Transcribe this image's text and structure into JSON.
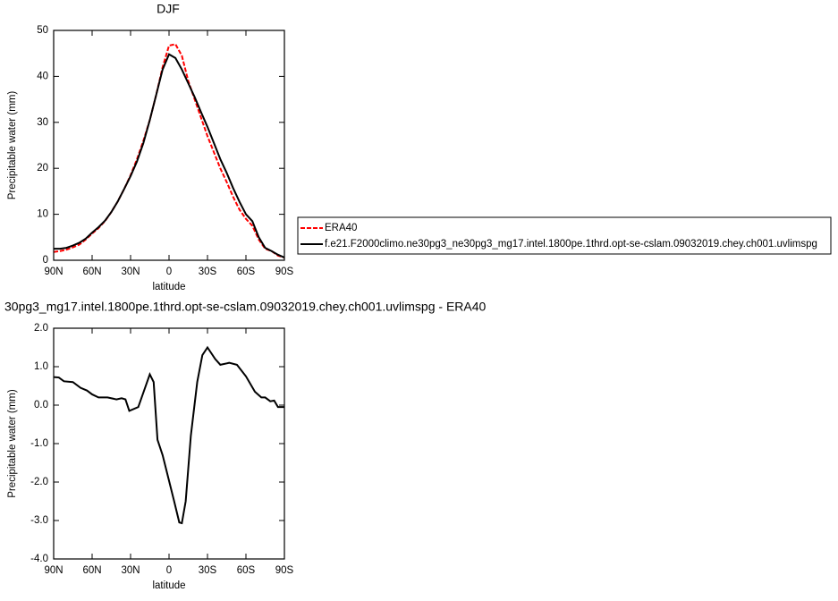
{
  "chart_data": [
    {
      "type": "line",
      "title": "DJF",
      "xlabel": "latitude",
      "ylabel": "Precipitable water (mm)",
      "x": [
        90,
        85,
        80,
        75,
        70,
        65,
        60,
        55,
        50,
        45,
        40,
        35,
        30,
        25,
        20,
        15,
        10,
        5,
        0,
        -5,
        -10,
        -15,
        -20,
        -25,
        -30,
        -35,
        -40,
        -45,
        -50,
        -55,
        -60,
        -65,
        -70,
        -75,
        -80,
        -85,
        -90
      ],
      "series": [
        {
          "name": "ERA40",
          "color": "#ff0000",
          "line_style": "dashed",
          "values": [
            1.8,
            2.0,
            2.3,
            2.8,
            3.4,
            4.5,
            5.8,
            7.0,
            8.5,
            10.5,
            12.8,
            15.5,
            18.5,
            22,
            26,
            30.5,
            36,
            42,
            46.7,
            47,
            44.5,
            39,
            35,
            31,
            27,
            23.5,
            20,
            17,
            13.8,
            11,
            9,
            7.5,
            4.5,
            2.5,
            2,
            1,
            0.6
          ]
        },
        {
          "name": "f.e21.F2000climo.ne30pg3_ne30pg3_mg17.intel.1800pe.1thrd.opt-se-cslam.09032019.chey.ch001.uvlimspg",
          "color": "#000000",
          "line_style": "solid",
          "values": [
            2.5,
            2.5,
            2.7,
            3.2,
            3.8,
            4.7,
            6,
            7.2,
            8.6,
            10.5,
            12.8,
            15.5,
            18.3,
            21.5,
            25.5,
            30.5,
            36,
            41.5,
            44.8,
            44,
            41.5,
            38.5,
            35.5,
            32.2,
            29,
            25.5,
            22,
            19,
            15.7,
            12.7,
            10,
            8.5,
            5,
            2.7,
            2,
            1.2,
            0.6
          ]
        }
      ],
      "xlim": [
        90,
        -90
      ],
      "xticks": [
        {
          "value": 90,
          "label": "90N"
        },
        {
          "value": 60,
          "label": "60N"
        },
        {
          "value": 30,
          "label": "30N"
        },
        0,
        {
          "value": -30,
          "label": "30S"
        },
        {
          "value": -60,
          "label": "60S"
        },
        {
          "value": -90,
          "label": "90S"
        }
      ],
      "ylim": [
        0,
        50
      ],
      "yticks": [
        0,
        10,
        20,
        30,
        40,
        50
      ],
      "legend": "right"
    },
    {
      "type": "line",
      "title": "30pg3_mg17.intel.1800pe.1thrd.opt-se-cslam.09032019.chey.ch001.uvlimspg - ERA40",
      "xlabel": "latitude",
      "ylabel": "Precipitable water (mm)",
      "x": [
        90,
        86,
        82,
        75,
        69,
        64,
        60,
        55,
        48,
        41,
        37,
        34,
        31,
        24,
        15,
        12,
        9,
        5,
        -1,
        -4,
        -8,
        -10,
        -13,
        -17,
        -22,
        -26,
        -30,
        -36,
        -40,
        -47,
        -53,
        -60,
        -67,
        -72,
        -75,
        -79,
        -82,
        -85,
        -90
      ],
      "series": [
        {
          "color": "#000000",
          "line_style": "solid",
          "values": [
            0.73,
            0.72,
            0.62,
            0.6,
            0.45,
            0.38,
            0.28,
            0.2,
            0.2,
            0.15,
            0.18,
            0.15,
            -0.15,
            -0.05,
            0.8,
            0.6,
            -0.9,
            -1.3,
            -2.1,
            -2.5,
            -3.05,
            -3.07,
            -2.5,
            -0.8,
            0.6,
            1.3,
            1.5,
            1.2,
            1.05,
            1.1,
            1.05,
            0.75,
            0.35,
            0.2,
            0.2,
            0.1,
            0.12,
            -0.05,
            -0.05
          ]
        }
      ],
      "xlim": [
        90,
        -90
      ],
      "xticks": [
        {
          "value": 90,
          "label": "90N"
        },
        {
          "value": 60,
          "label": "60N"
        },
        {
          "value": 30,
          "label": "30N"
        },
        0,
        {
          "value": -30,
          "label": "30S"
        },
        {
          "value": -60,
          "label": "60S"
        },
        {
          "value": -90,
          "label": "90S"
        }
      ],
      "ylim": [
        -4,
        2
      ],
      "yticks": [
        {
          "value": -4,
          "label": "-4.0"
        },
        {
          "value": -3,
          "label": "-3.0"
        },
        {
          "value": -2,
          "label": "-2.0"
        },
        {
          "value": -1,
          "label": "-1.0"
        },
        {
          "value": 0,
          "label": "0.0"
        },
        {
          "value": 1,
          "label": "1.0"
        },
        {
          "value": 2,
          "label": "2.0"
        }
      ]
    }
  ]
}
